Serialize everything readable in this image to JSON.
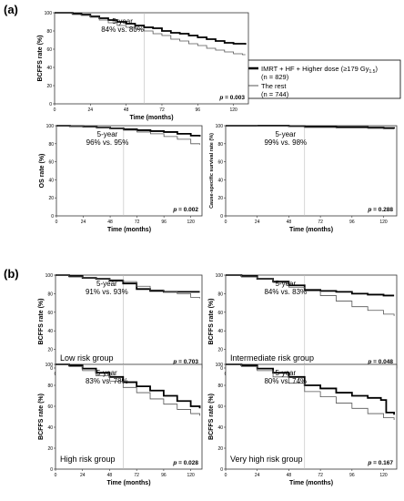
{
  "sections": {
    "a": "(a)",
    "b": "(b)"
  },
  "legend": {
    "entries": [
      {
        "label": "IMRT + HF + Higher dose (≥179 Gy",
        "sub": "1.5",
        "tail": ")",
        "n": "(n = 829)",
        "style": "thick",
        "color": "#000000"
      },
      {
        "label": "The rest",
        "sub": "",
        "tail": "",
        "n": "(n = 744)",
        "style": "thin",
        "color": "#555555"
      }
    ]
  },
  "x_ticks": [
    0,
    24,
    48,
    72,
    96,
    120
  ],
  "y_ticks": [
    0,
    20,
    40,
    60,
    80,
    100
  ],
  "chart_data": [
    {
      "type": "line",
      "id": "a-bcffs",
      "xlabel": "Time (months)",
      "ylabel": "BCFFS rate (%)",
      "xlim": [
        0,
        130
      ],
      "ylim": [
        0,
        100
      ],
      "annotation_line1": "5-year",
      "annotation_line2": "84% vs. 80%",
      "pvalue": "p = 0.003",
      "group_label": "",
      "series": [
        {
          "style": "thick",
          "points": [
            [
              0,
              100
            ],
            [
              6,
              100
            ],
            [
              12,
              99
            ],
            [
              18,
              98
            ],
            [
              24,
              96
            ],
            [
              30,
              94
            ],
            [
              36,
              92
            ],
            [
              42,
              90
            ],
            [
              48,
              88
            ],
            [
              54,
              86
            ],
            [
              60,
              84
            ],
            [
              66,
              83
            ],
            [
              72,
              80
            ],
            [
              78,
              78
            ],
            [
              84,
              77
            ],
            [
              90,
              75
            ],
            [
              96,
              73
            ],
            [
              102,
              71
            ],
            [
              108,
              69
            ],
            [
              114,
              67
            ],
            [
              120,
              66
            ],
            [
              126,
              66
            ],
            [
              128,
              65
            ]
          ]
        },
        {
          "style": "thin",
          "points": [
            [
              0,
              100
            ],
            [
              6,
              100
            ],
            [
              12,
              98
            ],
            [
              18,
              97
            ],
            [
              24,
              95
            ],
            [
              30,
              92
            ],
            [
              36,
              89
            ],
            [
              42,
              86
            ],
            [
              48,
              84
            ],
            [
              54,
              82
            ],
            [
              60,
              80
            ],
            [
              66,
              77
            ],
            [
              72,
              75
            ],
            [
              78,
              71
            ],
            [
              84,
              69
            ],
            [
              90,
              66
            ],
            [
              96,
              64
            ],
            [
              102,
              61
            ],
            [
              108,
              59
            ],
            [
              114,
              57
            ],
            [
              120,
              55
            ],
            [
              126,
              54
            ],
            [
              128,
              54
            ]
          ]
        }
      ]
    },
    {
      "type": "line",
      "id": "a-os",
      "xlabel": "Time (months)",
      "ylabel": "OS rate (%)",
      "xlim": [
        0,
        130
      ],
      "ylim": [
        0,
        100
      ],
      "annotation_line1": "5-year",
      "annotation_line2": "96% vs. 95%",
      "pvalue": "p = 0.002",
      "group_label": "",
      "series": [
        {
          "style": "thick",
          "points": [
            [
              0,
              100
            ],
            [
              12,
              99.5
            ],
            [
              24,
              99
            ],
            [
              36,
              98
            ],
            [
              48,
              97
            ],
            [
              60,
              96
            ],
            [
              72,
              95
            ],
            [
              84,
              94
            ],
            [
              96,
              93
            ],
            [
              108,
              91
            ],
            [
              120,
              89
            ],
            [
              128,
              88
            ]
          ]
        },
        {
          "style": "thin",
          "points": [
            [
              0,
              100
            ],
            [
              12,
              99.5
            ],
            [
              24,
              99
            ],
            [
              36,
              98
            ],
            [
              48,
              96.5
            ],
            [
              60,
              95
            ],
            [
              72,
              93
            ],
            [
              84,
              91
            ],
            [
              96,
              88
            ],
            [
              108,
              85
            ],
            [
              120,
              80
            ],
            [
              128,
              79
            ]
          ]
        }
      ]
    },
    {
      "type": "line",
      "id": "a-css",
      "xlabel": "Time (months)",
      "ylabel": "Cause-specific survival rate (%)",
      "xlim": [
        0,
        130
      ],
      "ylim": [
        0,
        100
      ],
      "annotation_line1": "5-year",
      "annotation_line2": "99% vs. 98%",
      "pvalue": "p = 0.288",
      "group_label": "",
      "series": [
        {
          "style": "thick",
          "points": [
            [
              0,
              100
            ],
            [
              24,
              100
            ],
            [
              48,
              99.5
            ],
            [
              60,
              99
            ],
            [
              84,
              98.5
            ],
            [
              108,
              98
            ],
            [
              120,
              97.5
            ],
            [
              128,
              97
            ]
          ]
        },
        {
          "style": "thin",
          "points": [
            [
              0,
              100
            ],
            [
              24,
              99.5
            ],
            [
              48,
              99
            ],
            [
              60,
              98
            ],
            [
              84,
              97.5
            ],
            [
              108,
              97
            ],
            [
              120,
              96.5
            ],
            [
              128,
              96
            ]
          ]
        }
      ]
    },
    {
      "type": "line",
      "id": "b-low",
      "xlabel": "Time (months)",
      "ylabel": "BCFFS rate (%)",
      "xlim": [
        0,
        130
      ],
      "ylim": [
        0,
        100
      ],
      "annotation_line1": "5-year",
      "annotation_line2": "91% vs. 93%",
      "pvalue": "p = 0.703",
      "group_label": "Low risk group",
      "series": [
        {
          "style": "thick",
          "points": [
            [
              0,
              100
            ],
            [
              12,
              99
            ],
            [
              24,
              97
            ],
            [
              36,
              96
            ],
            [
              48,
              94
            ],
            [
              60,
              91
            ],
            [
              72,
              85
            ],
            [
              84,
              83
            ],
            [
              96,
              82
            ],
            [
              108,
              82
            ],
            [
              120,
              82
            ],
            [
              128,
              82
            ]
          ]
        },
        {
          "style": "thin",
          "points": [
            [
              0,
              100
            ],
            [
              12,
              98
            ],
            [
              24,
              97
            ],
            [
              36,
              96
            ],
            [
              48,
              95
            ],
            [
              60,
              93
            ],
            [
              72,
              88
            ],
            [
              84,
              84
            ],
            [
              96,
              82
            ],
            [
              108,
              80
            ],
            [
              120,
              76
            ],
            [
              128,
              75
            ]
          ]
        }
      ]
    },
    {
      "type": "line",
      "id": "b-intermediate",
      "xlabel": "Time (months)",
      "ylabel": "BCFFS rate (%)",
      "xlim": [
        0,
        130
      ],
      "ylim": [
        0,
        100
      ],
      "annotation_line1": "5-year",
      "annotation_line2": "84% vs. 83%",
      "pvalue": "p = 0.048",
      "group_label": "Intermediate risk group",
      "series": [
        {
          "style": "thick",
          "points": [
            [
              0,
              100
            ],
            [
              12,
              99
            ],
            [
              24,
              96
            ],
            [
              36,
              93
            ],
            [
              48,
              89
            ],
            [
              60,
              84
            ],
            [
              72,
              83
            ],
            [
              84,
              82
            ],
            [
              96,
              80
            ],
            [
              108,
              79
            ],
            [
              120,
              78
            ],
            [
              128,
              78
            ]
          ]
        },
        {
          "style": "thin",
          "points": [
            [
              0,
              100
            ],
            [
              12,
              98
            ],
            [
              24,
              96
            ],
            [
              36,
              92
            ],
            [
              48,
              87
            ],
            [
              60,
              83
            ],
            [
              72,
              78
            ],
            [
              84,
              72
            ],
            [
              96,
              66
            ],
            [
              108,
              62
            ],
            [
              120,
              58
            ],
            [
              128,
              56
            ]
          ]
        }
      ]
    },
    {
      "type": "line",
      "id": "b-high",
      "xlabel": "Time (months)",
      "ylabel": "BCFFS rate (%)",
      "xlim": [
        0,
        130
      ],
      "ylim": [
        0,
        100
      ],
      "annotation_line1": "5-year",
      "annotation_line2": "83% vs. 78%",
      "pvalue": "p = 0.028",
      "group_label": "High risk group",
      "series": [
        {
          "style": "thick",
          "points": [
            [
              0,
              100
            ],
            [
              12,
              99
            ],
            [
              24,
              96
            ],
            [
              36,
              92
            ],
            [
              48,
              88
            ],
            [
              60,
              83
            ],
            [
              72,
              79
            ],
            [
              84,
              75
            ],
            [
              96,
              70
            ],
            [
              108,
              65
            ],
            [
              120,
              60
            ],
            [
              128,
              58
            ]
          ]
        },
        {
          "style": "thin",
          "points": [
            [
              0,
              100
            ],
            [
              12,
              98
            ],
            [
              24,
              94
            ],
            [
              36,
              89
            ],
            [
              48,
              84
            ],
            [
              60,
              78
            ],
            [
              72,
              73
            ],
            [
              84,
              67
            ],
            [
              96,
              62
            ],
            [
              108,
              57
            ],
            [
              120,
              53
            ],
            [
              128,
              51
            ]
          ]
        }
      ]
    },
    {
      "type": "line",
      "id": "b-veryhigh",
      "xlabel": "Time (months)",
      "ylabel": "BCFFS rate (%)",
      "xlim": [
        0,
        130
      ],
      "ylim": [
        0,
        100
      ],
      "annotation_line1": "5-year",
      "annotation_line2": "80% vs. 74%",
      "pvalue": "p = 0.167",
      "group_label": "Very high risk group",
      "series": [
        {
          "style": "thick",
          "points": [
            [
              0,
              100
            ],
            [
              12,
              99
            ],
            [
              24,
              96
            ],
            [
              36,
              92
            ],
            [
              48,
              88
            ],
            [
              60,
              80
            ],
            [
              72,
              77
            ],
            [
              84,
              73
            ],
            [
              96,
              70
            ],
            [
              108,
              68
            ],
            [
              118,
              66
            ],
            [
              122,
              54
            ],
            [
              128,
              52
            ]
          ]
        },
        {
          "style": "thin",
          "points": [
            [
              0,
              100
            ],
            [
              12,
              98
            ],
            [
              24,
              94
            ],
            [
              36,
              88
            ],
            [
              48,
              82
            ],
            [
              60,
              74
            ],
            [
              72,
              69
            ],
            [
              84,
              63
            ],
            [
              96,
              58
            ],
            [
              108,
              53
            ],
            [
              120,
              49
            ],
            [
              128,
              47
            ]
          ]
        }
      ]
    }
  ]
}
